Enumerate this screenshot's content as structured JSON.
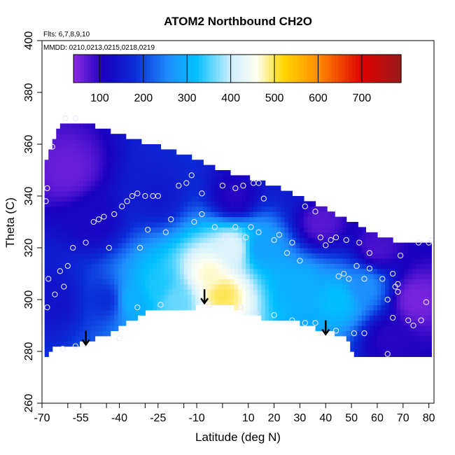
{
  "chart_data": {
    "type": "heatmap",
    "title": "ATOM2 Northbound CH2O",
    "flights_note": "Flts: 6,7,8,9,10",
    "dates_note": "MMDD: 0210,0213,0215,0218,0219",
    "xlabel": "Latitude (deg N)",
    "ylabel": "Theta (C)",
    "xlim": [
      -70,
      82
    ],
    "ylim": [
      260,
      400
    ],
    "x_ticks": [
      -70,
      -55,
      -40,
      -25,
      -10,
      10,
      30,
      50,
      70
    ],
    "x_tick_labels": [
      "-70",
      "-55",
      "-40",
      "-25",
      "-10",
      "10",
      "30",
      "50",
      "70"
    ],
    "x_ticks_alt": [
      -60,
      -45,
      -30,
      -15,
      0,
      20,
      40,
      60,
      80
    ],
    "x_tick_labels_alt": [
      "",
      "",
      "",
      "",
      "",
      "20",
      "40",
      "60",
      "80"
    ],
    "y_ticks": [
      260,
      280,
      300,
      320,
      340,
      360,
      380,
      400
    ],
    "y_tick_labels": [
      "260",
      "280",
      "300",
      "320",
      "340",
      "360",
      "380",
      "400"
    ],
    "colorbar": {
      "range": [
        40,
        790
      ],
      "ticks": [
        100,
        200,
        300,
        400,
        500,
        600,
        700
      ],
      "tick_labels": [
        "100",
        "200",
        "300",
        "400",
        "500",
        "600",
        "700"
      ],
      "stops": [
        {
          "v": 40,
          "c": "#8a2be2"
        },
        {
          "v": 110,
          "c": "#1a00c0"
        },
        {
          "v": 180,
          "c": "#0a2bd8"
        },
        {
          "v": 260,
          "c": "#1e90ff"
        },
        {
          "v": 320,
          "c": "#00c0ff"
        },
        {
          "v": 400,
          "c": "#cfefff"
        },
        {
          "v": 460,
          "c": "#fffff0"
        },
        {
          "v": 520,
          "c": "#ffd700"
        },
        {
          "v": 600,
          "c": "#ff8c00"
        },
        {
          "v": 700,
          "c": "#e00000"
        },
        {
          "v": 790,
          "c": "#9b1b1b"
        }
      ]
    },
    "surface_boundary": {
      "lat": [
        -69,
        -66,
        -60,
        -55,
        -50,
        -44,
        -37,
        -30,
        -20,
        -10,
        0,
        3,
        10,
        20,
        30,
        40,
        47,
        52,
        58,
        70,
        80
      ],
      "theta": [
        278,
        282,
        282,
        283,
        285,
        287,
        291,
        295,
        296,
        297,
        298,
        298,
        294,
        292,
        291,
        288,
        286,
        278,
        278,
        278,
        278
      ]
    },
    "top_boundary": {
      "lat": [
        -69,
        -63,
        -50,
        -35,
        -20,
        -10,
        0,
        10,
        20,
        30,
        40,
        50,
        60,
        70,
        80
      ],
      "theta": [
        352,
        369,
        367,
        362,
        358,
        354,
        350,
        347,
        344,
        340,
        335,
        330,
        325,
        322,
        321
      ]
    },
    "field_features": [
      {
        "lat": -65,
        "theta": 300,
        "value": 140
      },
      {
        "lat": -60,
        "theta": 350,
        "value": 60
      },
      {
        "lat": -50,
        "theta": 330,
        "value": 120
      },
      {
        "lat": -45,
        "theta": 300,
        "value": 180
      },
      {
        "lat": -35,
        "theta": 300,
        "value": 300
      },
      {
        "lat": -25,
        "theta": 305,
        "value": 330
      },
      {
        "lat": -18,
        "theta": 300,
        "value": 360
      },
      {
        "lat": -5,
        "theta": 310,
        "value": 470
      },
      {
        "lat": 0,
        "theta": 302,
        "value": 500
      },
      {
        "lat": 4,
        "theta": 320,
        "value": 420
      },
      {
        "lat": -25,
        "theta": 340,
        "value": 150
      },
      {
        "lat": 5,
        "theta": 340,
        "value": 100
      },
      {
        "lat": 15,
        "theta": 320,
        "value": 280
      },
      {
        "lat": 30,
        "theta": 305,
        "value": 300
      },
      {
        "lat": 45,
        "theta": 300,
        "value": 320
      },
      {
        "lat": 55,
        "theta": 305,
        "value": 260
      },
      {
        "lat": 38,
        "theta": 330,
        "value": 70
      },
      {
        "lat": 60,
        "theta": 320,
        "value": 80
      },
      {
        "lat": 75,
        "theta": 300,
        "value": 50
      },
      {
        "lat": 65,
        "theta": 285,
        "value": 100
      },
      {
        "lat": 30,
        "theta": 345,
        "value": 150
      }
    ],
    "sample_points": [
      {
        "lat": -68,
        "theta": 343
      },
      {
        "lat": -68.5,
        "theta": 338
      },
      {
        "lat": -67.5,
        "theta": 308
      },
      {
        "lat": -68,
        "theta": 297
      },
      {
        "lat": -65,
        "theta": 302
      },
      {
        "lat": -63,
        "theta": 311
      },
      {
        "lat": -60,
        "theta": 313
      },
      {
        "lat": -61.5,
        "theta": 305
      },
      {
        "lat": -58,
        "theta": 320
      },
      {
        "lat": -57,
        "theta": 370
      },
      {
        "lat": -61,
        "theta": 370
      },
      {
        "lat": -66,
        "theta": 359
      },
      {
        "lat": -53,
        "theta": 322
      },
      {
        "lat": -50,
        "theta": 330
      },
      {
        "lat": -48,
        "theta": 331
      },
      {
        "lat": -46,
        "theta": 332
      },
      {
        "lat": -44,
        "theta": 320
      },
      {
        "lat": -42,
        "theta": 333
      },
      {
        "lat": -39,
        "theta": 336
      },
      {
        "lat": -37,
        "theta": 338
      },
      {
        "lat": -35,
        "theta": 340
      },
      {
        "lat": -33,
        "theta": 341
      },
      {
        "lat": -30,
        "theta": 340
      },
      {
        "lat": -27,
        "theta": 340
      },
      {
        "lat": -32,
        "theta": 320
      },
      {
        "lat": -29,
        "theta": 327
      },
      {
        "lat": -22,
        "theta": 326
      },
      {
        "lat": -20,
        "theta": 331
      },
      {
        "lat": -17,
        "theta": 344
      },
      {
        "lat": -14,
        "theta": 345
      },
      {
        "lat": -12,
        "theta": 348
      },
      {
        "lat": -8,
        "theta": 341
      },
      {
        "lat": -8,
        "theta": 333
      },
      {
        "lat": -11,
        "theta": 330
      },
      {
        "lat": 0,
        "theta": 344
      },
      {
        "lat": 5,
        "theta": 343
      },
      {
        "lat": 8,
        "theta": 344
      },
      {
        "lat": 12,
        "theta": 345
      },
      {
        "lat": 14,
        "theta": 345
      },
      {
        "lat": 16,
        "theta": 339
      },
      {
        "lat": -3,
        "theta": 328
      },
      {
        "lat": 1,
        "theta": 324
      },
      {
        "lat": 5,
        "theta": 328
      },
      {
        "lat": 9,
        "theta": 324
      },
      {
        "lat": 11,
        "theta": 328
      },
      {
        "lat": 14,
        "theta": 326
      },
      {
        "lat": 20,
        "theta": 323
      },
      {
        "lat": 22,
        "theta": 325
      },
      {
        "lat": 25,
        "theta": 318
      },
      {
        "lat": 27,
        "theta": 322
      },
      {
        "lat": 30,
        "theta": 315
      },
      {
        "lat": 32,
        "theta": 336
      },
      {
        "lat": 36,
        "theta": 334
      },
      {
        "lat": 38,
        "theta": 324
      },
      {
        "lat": 40,
        "theta": 321
      },
      {
        "lat": 42,
        "theta": 323
      },
      {
        "lat": 44,
        "theta": 324
      },
      {
        "lat": 48,
        "theta": 323
      },
      {
        "lat": 53,
        "theta": 322
      },
      {
        "lat": 57,
        "theta": 318
      },
      {
        "lat": 45,
        "theta": 309
      },
      {
        "lat": 47,
        "theta": 310
      },
      {
        "lat": 49,
        "theta": 308
      },
      {
        "lat": 52,
        "theta": 313
      },
      {
        "lat": 55,
        "theta": 308
      },
      {
        "lat": 57,
        "theta": 312
      },
      {
        "lat": 62,
        "theta": 308
      },
      {
        "lat": 64,
        "theta": 300
      },
      {
        "lat": 66,
        "theta": 310
      },
      {
        "lat": 67,
        "theta": 305
      },
      {
        "lat": 68,
        "theta": 303
      },
      {
        "lat": 68,
        "theta": 306
      },
      {
        "lat": 69,
        "theta": 317
      },
      {
        "lat": 72,
        "theta": 292
      },
      {
        "lat": 74,
        "theta": 290
      },
      {
        "lat": 76,
        "theta": 322
      },
      {
        "lat": 77,
        "theta": 292
      },
      {
        "lat": 79,
        "theta": 299
      },
      {
        "lat": 80,
        "theta": 322
      },
      {
        "lat": 81,
        "theta": 323
      },
      {
        "lat": -25,
        "theta": 340
      },
      {
        "lat": -24,
        "theta": 298
      },
      {
        "lat": -33,
        "theta": 297
      },
      {
        "lat": -40,
        "theta": 285
      },
      {
        "lat": -57,
        "theta": 282
      },
      {
        "lat": -62,
        "theta": 281
      },
      {
        "lat": -5,
        "theta": 298
      },
      {
        "lat": 7,
        "theta": 297
      },
      {
        "lat": 13,
        "theta": 295
      },
      {
        "lat": 20,
        "theta": 294
      },
      {
        "lat": 27,
        "theta": 292
      },
      {
        "lat": 32,
        "theta": 291
      },
      {
        "lat": 36,
        "theta": 291
      },
      {
        "lat": 44,
        "theta": 288
      },
      {
        "lat": 51,
        "theta": 287
      },
      {
        "lat": 55,
        "theta": 287
      },
      {
        "lat": 66,
        "theta": 293
      },
      {
        "lat": 64,
        "theta": 279
      }
    ],
    "arrows": [
      {
        "lat": -53,
        "theta": 288
      },
      {
        "lat": -7,
        "theta": 304
      },
      {
        "lat": 40,
        "theta": 292
      }
    ]
  }
}
